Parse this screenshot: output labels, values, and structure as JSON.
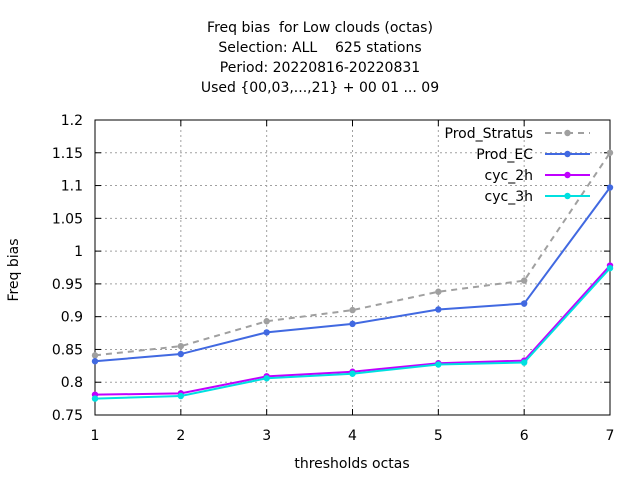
{
  "chart_data": {
    "type": "line",
    "title_lines": [
      "Freq bias  for Low clouds (octas)",
      "Selection: ALL    625 stations",
      "Period: 20220816-20220831",
      "Used {00,03,...,21} + 00 01 ... 09"
    ],
    "xlabel": "thresholds octas",
    "ylabel": "Freq bias",
    "x": [
      1,
      2,
      3,
      4,
      5,
      6,
      7
    ],
    "xlim": [
      1,
      7
    ],
    "ylim": [
      0.75,
      1.2
    ],
    "yticks": [
      0.75,
      0.8,
      0.85,
      0.9,
      0.95,
      1,
      1.05,
      1.1,
      1.15,
      1.2
    ],
    "ytick_labels": [
      "0.75",
      "0.8",
      "0.85",
      "0.9",
      "0.95",
      "1",
      "1.05",
      "1.1",
      "1.15",
      "1.2"
    ],
    "xtick_labels": [
      "1",
      "2",
      "3",
      "4",
      "5",
      "6",
      "7"
    ],
    "grid": true,
    "legend_position": "top-right",
    "series": [
      {
        "name": "Prod_Stratus",
        "color": "#a0a0a0",
        "dashed": true,
        "values": [
          0.841,
          0.855,
          0.893,
          0.91,
          0.938,
          0.955,
          1.15
        ]
      },
      {
        "name": "Prod_EC",
        "color": "#4169e1",
        "dashed": false,
        "values": [
          0.832,
          0.843,
          0.876,
          0.889,
          0.911,
          0.92,
          1.097
        ]
      },
      {
        "name": "cyc_2h",
        "color": "#c000ff",
        "dashed": false,
        "values": [
          0.781,
          0.783,
          0.809,
          0.816,
          0.829,
          0.833,
          0.978
        ]
      },
      {
        "name": "cyc_3h",
        "color": "#00e0e0",
        "dashed": false,
        "values": [
          0.775,
          0.779,
          0.806,
          0.813,
          0.827,
          0.83,
          0.974
        ]
      }
    ]
  }
}
